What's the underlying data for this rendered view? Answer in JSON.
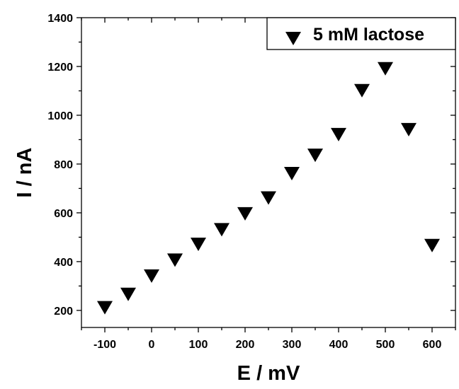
{
  "chart_data": {
    "type": "scatter",
    "title": "",
    "xlabel": "E / mV",
    "ylabel": "I / nA",
    "xlim": [
      -150,
      650
    ],
    "ylim": [
      130,
      1400
    ],
    "xticks": [
      -100,
      0,
      100,
      200,
      300,
      400,
      500,
      600
    ],
    "yticks": [
      200,
      400,
      600,
      800,
      1000,
      1200,
      1400
    ],
    "xtick_labels": [
      "-100",
      "0",
      "100",
      "200",
      "300",
      "400",
      "500",
      "600"
    ],
    "ytick_labels": [
      "200",
      "400",
      "600",
      "800",
      "1000",
      "1200",
      "1400"
    ],
    "grid": false,
    "legend_position": "top-right",
    "marker": "down-triangle",
    "marker_color": "#000000",
    "series": [
      {
        "name": "5 mM lactose",
        "x": [
          -100,
          -50,
          0,
          50,
          100,
          150,
          200,
          250,
          300,
          350,
          400,
          450,
          500,
          550,
          600
        ],
        "y": [
          215,
          270,
          345,
          410,
          475,
          535,
          600,
          665,
          765,
          840,
          925,
          1105,
          1195,
          945,
          470
        ]
      }
    ]
  }
}
